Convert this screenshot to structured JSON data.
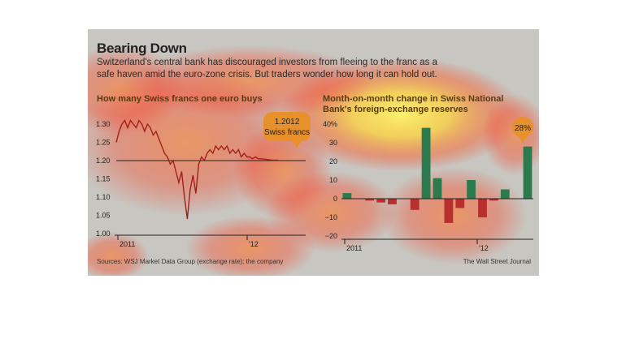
{
  "title": "Bearing Down",
  "subtitle": "Switzerland's central bank has discouraged investors from fleeing to the franc as a safe haven amid the euro-zone crisis. But traders wonder how long it can hold out.",
  "source": "Sources: WSJ Market Data Group (exchange rate); the company",
  "credit": "The Wall Street Journal",
  "colors": {
    "line": "#a0201a",
    "positive": "#2e7a4f",
    "negative": "#b8302e",
    "callout": "#e8902a",
    "floor": "#222222"
  },
  "chart_data": [
    {
      "type": "line",
      "title": "How many Swiss francs one euro buys",
      "xlabel": "",
      "ylabel": "",
      "x_tick_labels": [
        "2011",
        "'12"
      ],
      "y_ticks": [
        1.0,
        1.05,
        1.1,
        1.15,
        1.2,
        1.25,
        1.3
      ],
      "y_tick_labels": [
        "1.00",
        "1.05",
        "1.10",
        "1.15",
        "1.20",
        "1.25",
        "1.30"
      ],
      "ylim": [
        1.0,
        1.32
      ],
      "xlim": [
        0,
        20
      ],
      "reference_line": 1.2,
      "annotation": {
        "line1": "1.2012",
        "line2": "Swiss francs",
        "value": 1.2012
      },
      "series": [
        {
          "x": [
            0,
            0.3,
            0.6,
            0.9,
            1.2,
            1.5,
            1.8,
            2.1,
            2.4,
            2.7,
            3.0,
            3.3,
            3.6,
            3.9,
            4.2,
            4.5,
            4.8,
            5.1,
            5.4,
            5.7,
            6.0,
            6.3,
            6.6,
            6.9,
            7.2,
            7.5,
            7.8,
            8.1,
            8.4,
            8.7,
            9.0,
            9.3,
            9.6,
            9.9,
            10.2,
            10.5,
            10.8,
            11.1,
            11.4,
            11.7,
            12.0,
            12.3,
            12.6,
            12.9,
            13.2,
            13.5,
            13.8,
            14.1,
            14.4,
            14.7,
            15.0,
            15.3,
            15.6,
            15.9,
            16.2,
            16.5,
            16.8,
            17.1
          ],
          "y": [
            1.25,
            1.28,
            1.3,
            1.31,
            1.29,
            1.31,
            1.3,
            1.29,
            1.31,
            1.3,
            1.28,
            1.3,
            1.29,
            1.27,
            1.28,
            1.26,
            1.24,
            1.22,
            1.21,
            1.19,
            1.2,
            1.17,
            1.14,
            1.17,
            1.1,
            1.04,
            1.12,
            1.16,
            1.11,
            1.19,
            1.21,
            1.2,
            1.22,
            1.23,
            1.22,
            1.24,
            1.23,
            1.24,
            1.23,
            1.24,
            1.22,
            1.23,
            1.22,
            1.23,
            1.21,
            1.22,
            1.21,
            1.21,
            1.205,
            1.21,
            1.205,
            1.205,
            1.204,
            1.203,
            1.202,
            1.2015,
            1.2013,
            1.2012
          ]
        }
      ]
    },
    {
      "type": "bar",
      "title": "Month-on-month change in Swiss National Bank's foreign-exchange reserves",
      "xlabel": "",
      "ylabel": "",
      "x_tick_labels": [
        "2011",
        "'12"
      ],
      "y_ticks": [
        -20,
        -10,
        0,
        10,
        20,
        30,
        40
      ],
      "y_tick_labels": [
        "−20",
        "−10",
        "0",
        "10",
        "20",
        "30",
        "40%"
      ],
      "ylim": [
        -20,
        40
      ],
      "annotation": {
        "label": "28%",
        "value": 28
      },
      "values": [
        3,
        0,
        -1,
        -2,
        -3,
        0,
        -6,
        38,
        11,
        -13,
        -5,
        10,
        -10,
        -1,
        5,
        0,
        28
      ]
    }
  ]
}
